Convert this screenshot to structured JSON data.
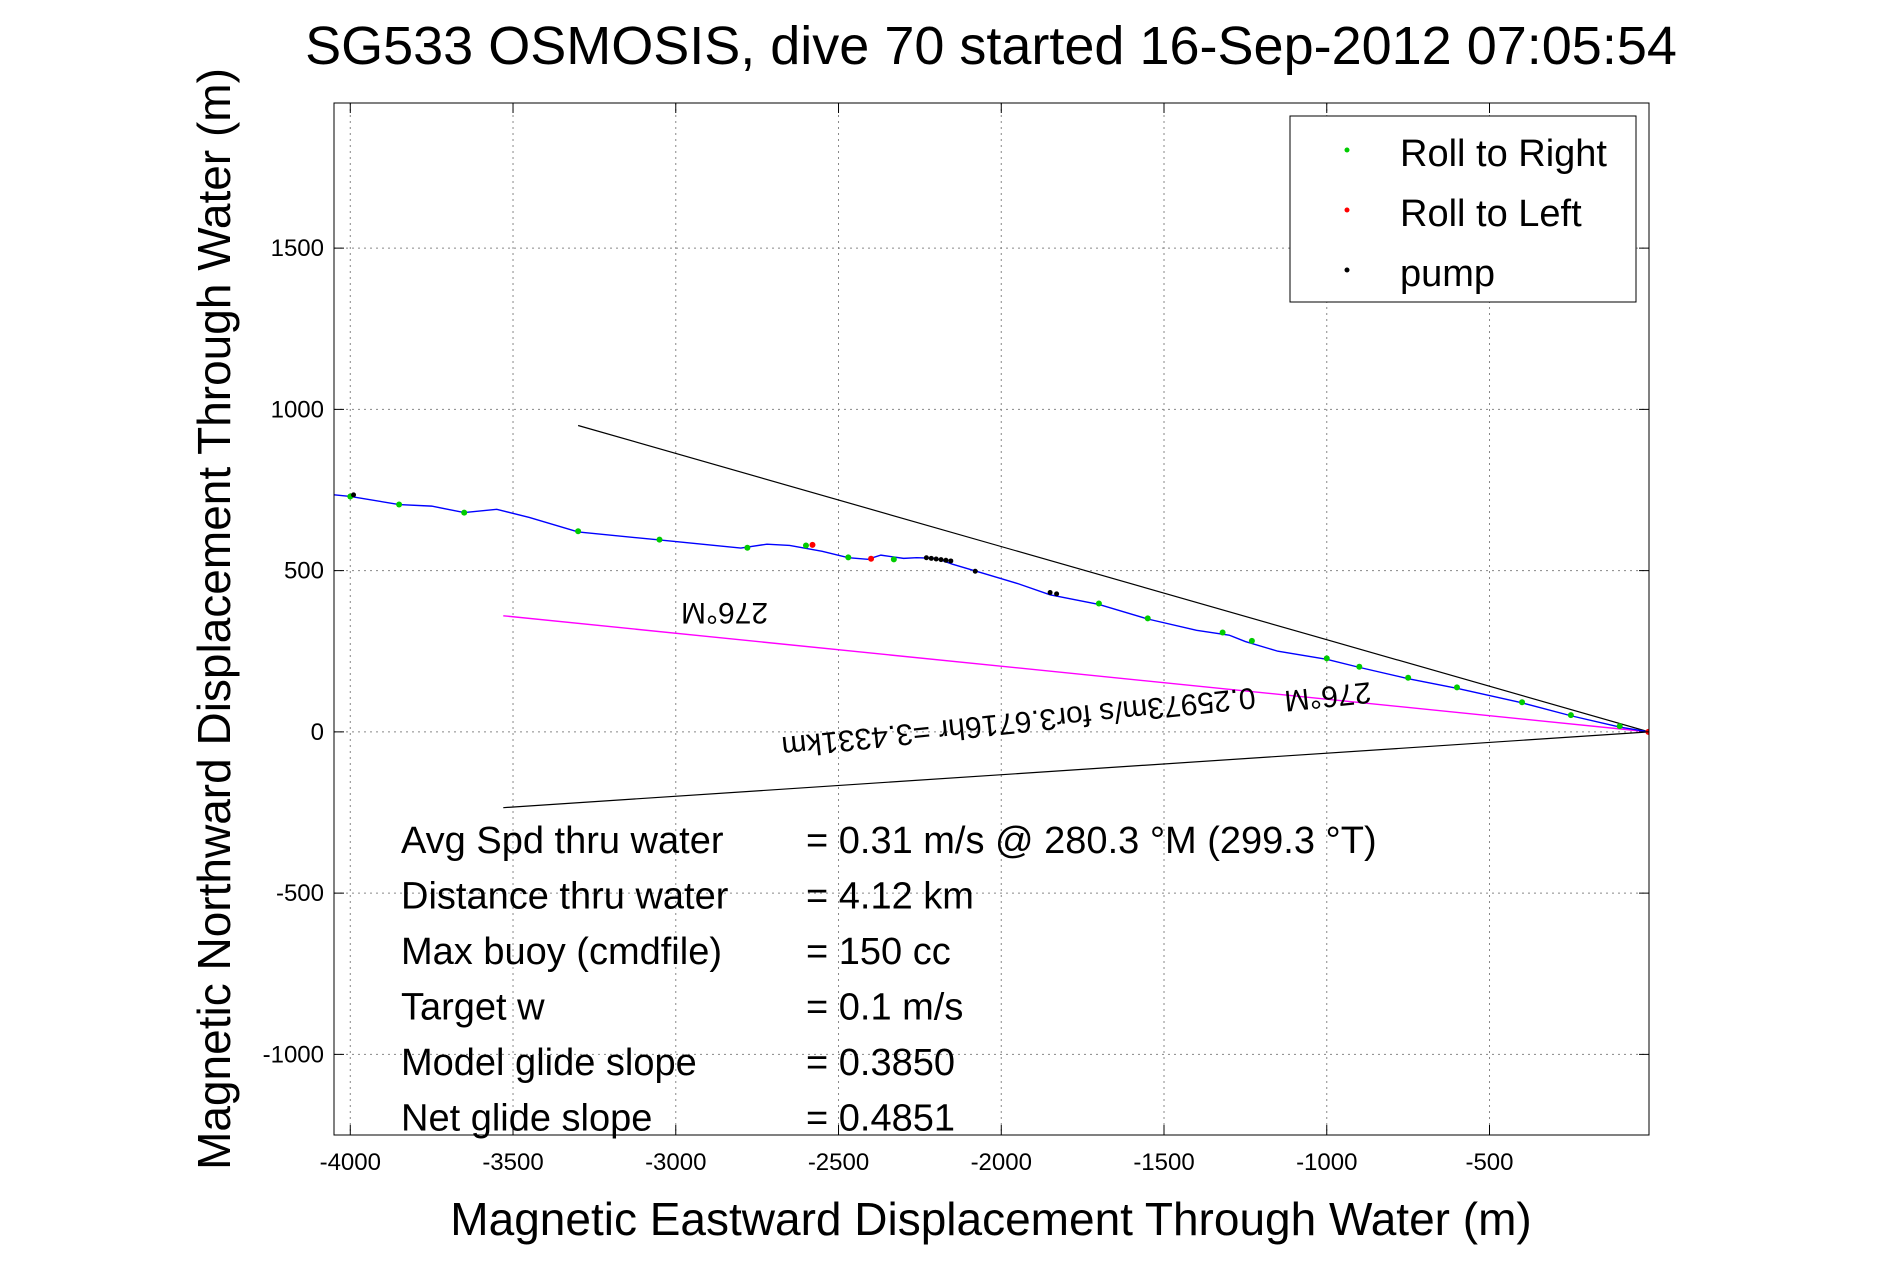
{
  "chart_data": {
    "type": "line",
    "title": "SG533 OSMOSIS, dive 70 started 16-Sep-2012 07:05:54",
    "xlabel": "Magnetic Eastward Displacement Through Water (m)",
    "ylabel": "Magnetic Northward Displacement Through Water (m)",
    "xlim": [
      -4050,
      -10
    ],
    "ylim": [
      -1250,
      1950
    ],
    "xticks": [
      -4000,
      -3500,
      -3000,
      -2500,
      -2000,
      -1500,
      -1000,
      -500
    ],
    "yticks": [
      -1000,
      -500,
      0,
      500,
      1000,
      1500
    ],
    "grid": true,
    "legend_position": "top-right",
    "colors": {
      "track": "#0000ff",
      "roll_right": "#00cc00",
      "roll_left": "#ff0000",
      "pump": "#000000",
      "bearing": "#ff00ff",
      "envelope": "#000000"
    },
    "legend": [
      {
        "label": "Roll to Right",
        "color": "#00cc00"
      },
      {
        "label": "Roll to Left",
        "color": "#ff0000"
      },
      {
        "label": "pump",
        "color": "#000000"
      }
    ],
    "track": {
      "x": [
        -4050,
        -4000,
        -3850,
        -3750,
        -3650,
        -3550,
        -3450,
        -3300,
        -3050,
        -2900,
        -2800,
        -2720,
        -2650,
        -2550,
        -2470,
        -2410,
        -2370,
        -2300,
        -2260,
        -2200,
        -2150,
        -2050,
        -1950,
        -1850,
        -1700,
        -1550,
        -1400,
        -1300,
        -1250,
        -1150,
        -1000,
        -900,
        -750,
        -600,
        -400,
        -250,
        -100,
        -10
      ],
      "y": [
        735,
        730,
        705,
        700,
        680,
        690,
        665,
        620,
        595,
        580,
        570,
        582,
        578,
        560,
        540,
        535,
        548,
        538,
        540,
        538,
        520,
        490,
        460,
        425,
        395,
        350,
        315,
        300,
        280,
        250,
        225,
        200,
        165,
        135,
        90,
        50,
        15,
        0
      ]
    },
    "roll_right_points": {
      "x": [
        -4000,
        -3850,
        -3650,
        -3300,
        -3050,
        -2780,
        -2600,
        -2470,
        -2330,
        -1700,
        -1550,
        -1320,
        -1230,
        -1000,
        -900,
        -750,
        -600,
        -400,
        -250,
        -100
      ],
      "y": [
        730,
        705,
        680,
        622,
        596,
        571,
        578,
        541,
        535,
        398,
        352,
        308,
        282,
        228,
        202,
        168,
        138,
        92,
        52,
        18
      ]
    },
    "roll_left_points": {
      "x": [
        -2580,
        -2400,
        -12
      ],
      "y": [
        580,
        537,
        0
      ]
    },
    "pump_points": {
      "x": [
        -3990,
        -2230,
        -2215,
        -2200,
        -2185,
        -2170,
        -2155,
        -2080,
        -1850,
        -1830
      ],
      "y": [
        735,
        540,
        538,
        536,
        534,
        532,
        530,
        498,
        432,
        428
      ]
    },
    "envelope_lines": [
      {
        "x": [
          -3300,
          -10
        ],
        "y": [
          950,
          0
        ]
      },
      {
        "x": [
          -3530,
          -10
        ],
        "y": [
          -235,
          0
        ]
      }
    ],
    "bearing_line": {
      "x": [
        -3530,
        -10
      ],
      "y": [
        360,
        0
      ]
    },
    "line_labels": [
      {
        "text": "276°M",
        "x": -2850,
        "y": 400,
        "angle": 180
      },
      {
        "text": "276°M",
        "x": -1000,
        "y": 140,
        "angle": 174
      },
      {
        "text": "0.25973m/s for3.6716hr =3.4331km",
        "x": -1950,
        "y": 60,
        "angle": 174
      }
    ],
    "annotations": [
      {
        "label": "Avg Spd thru water",
        "value": "=  0.31 m/s @ 280.3 °M (299.3 °T)"
      },
      {
        "label": "Distance thru water",
        "value": "=  4.12 km"
      },
      {
        "label": "Max buoy (cmdfile)",
        "value": "= 150 cc"
      },
      {
        "label": "Target w",
        "value": "= 0.1 m/s"
      },
      {
        "label": "Model glide slope",
        "value": "= 0.3850"
      },
      {
        "label": "Net glide slope",
        "value": "= 0.4851"
      }
    ]
  }
}
